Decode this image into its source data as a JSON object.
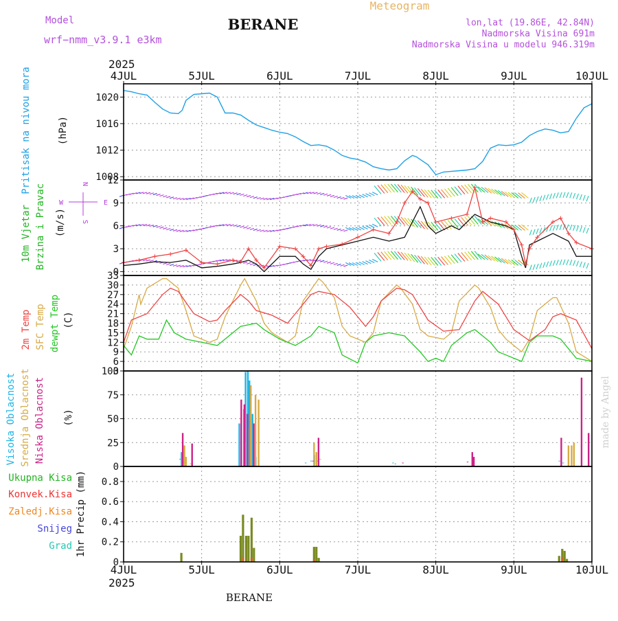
{
  "header": {
    "model_label": "Model",
    "model_name": "wrf−nmm_v3.9.1  e3km",
    "station": "BERANE",
    "meteogram": "Meteogram",
    "lonlat": "lon,lat (19.86E, 42.84N)",
    "elevation": "Nadmorska Visina 691m",
    "model_elevation": "Nadmorska Visina u modelu 946.319m",
    "year_top": "2025",
    "year_bottom": "2025",
    "footer_station": "BERANE",
    "credit": "made by Angel"
  },
  "colors": {
    "pressure": "#1ea0e6",
    "wind_label": "#22b422",
    "wind_dir": "#b43cdc",
    "temp2m": "#ee4444",
    "sfc": "#d8aa44",
    "dew": "#22c822",
    "cloud_high": "#1eb4e6",
    "cloud_mid": "#d8aa44",
    "cloud_low": "#cc2288",
    "precip_total": "#22b422",
    "precip_conv": "#ee3333",
    "precip_frz": "#ee8822",
    "precip_snow": "#4444dd",
    "precip_hail": "#22c8b4",
    "header_purple": "#b450dc",
    "header_orange": "#e6b464"
  },
  "chart_data": [
    {
      "type": "line",
      "id": "pressure",
      "title": "Pritisak na nivou mora",
      "ylabel": "(hPa)",
      "x_ticks": [
        "4JUL",
        "5JUL",
        "6JUL",
        "7JUL",
        "8JUL",
        "9JUL",
        "10JUL"
      ],
      "yticks": [
        "1008",
        "1012",
        "1016",
        "1020"
      ],
      "ylim": [
        1007.5,
        1022
      ],
      "x_days": [
        0,
        0.1,
        0.2,
        0.3,
        0.4,
        0.5,
        0.6,
        0.7,
        0.75,
        0.8,
        0.9,
        1.0,
        1.1,
        1.2,
        1.3,
        1.4,
        1.5,
        1.6,
        1.7,
        1.8,
        1.9,
        2.0,
        2.1,
        2.2,
        2.3,
        2.4,
        2.5,
        2.6,
        2.7,
        2.8,
        2.9,
        3.0,
        3.1,
        3.2,
        3.3,
        3.4,
        3.5,
        3.6,
        3.7,
        3.75,
        3.8,
        3.9,
        4.0,
        4.1,
        4.2,
        4.3,
        4.4,
        4.5,
        4.6,
        4.7,
        4.8,
        4.9,
        5.0,
        5.1,
        5.2,
        5.3,
        5.4,
        5.5,
        5.6,
        5.7,
        5.8,
        5.9,
        6.0
      ],
      "values": [
        1021,
        1020.8,
        1020.5,
        1020.3,
        1019.2,
        1018.2,
        1017.6,
        1017.5,
        1018.0,
        1019.5,
        1020.4,
        1020.5,
        1020.6,
        1020.0,
        1017.6,
        1017.6,
        1017.3,
        1016.5,
        1015.8,
        1015.4,
        1015.0,
        1014.7,
        1014.5,
        1014.0,
        1013.3,
        1012.7,
        1012.8,
        1012.6,
        1012.0,
        1011.2,
        1010.8,
        1010.6,
        1010.2,
        1009.5,
        1009.2,
        1009.0,
        1009.2,
        1010.4,
        1011.2,
        1011.0,
        1010.6,
        1009.8,
        1008.3,
        1008.7,
        1008.8,
        1008.9,
        1009.0,
        1009.2,
        1010.3,
        1012.3,
        1012.8,
        1012.7,
        1012.8,
        1013.2,
        1014.2,
        1014.8,
        1015.2,
        1015.0,
        1014.6,
        1014.8,
        1016.8,
        1018.4,
        1019.0
      ]
    },
    {
      "type": "line",
      "id": "wind",
      "title": "10m Vjetar",
      "title2": "Brzina i Pravac",
      "ylabel": "(m/s)",
      "dir_label": "N",
      "dir_e": "E",
      "dir_w": "W",
      "dir_s": "S",
      "yticks": [
        "0",
        "3",
        "6",
        "9",
        "12"
      ],
      "ylim": [
        -0.5,
        12
      ],
      "series": [
        {
          "name": "wind speed",
          "x_days": [
            0,
            0.2,
            0.4,
            0.6,
            0.8,
            1.0,
            1.2,
            1.4,
            1.5,
            1.6,
            1.7,
            1.8,
            2.0,
            2.2,
            2.3,
            2.4,
            2.5,
            2.6,
            2.8,
            3.0,
            3.2,
            3.4,
            3.6,
            3.8,
            3.9,
            4.0,
            4.1,
            4.2,
            4.3,
            4.5,
            4.7,
            4.9,
            5.0,
            5.1,
            5.15,
            5.2,
            5.3,
            5.5,
            5.7,
            5.8,
            6.0
          ],
          "values": [
            0.8,
            1.0,
            1.3,
            1.2,
            1.5,
            0.5,
            0.7,
            1.0,
            1.2,
            1.5,
            1.0,
            0.0,
            2.0,
            2.0,
            1.0,
            0.3,
            2.0,
            3.0,
            3.5,
            4.0,
            4.5,
            4.0,
            4.5,
            8.5,
            6.0,
            5.0,
            5.5,
            6.0,
            5.5,
            7.5,
            6.5,
            6.0,
            5.5,
            2.0,
            0.5,
            3.5,
            4.0,
            5.0,
            4.0,
            2.0,
            2.0
          ]
        },
        {
          "name": "wind gust",
          "x_days": [
            0,
            0.2,
            0.4,
            0.6,
            0.8,
            1.0,
            1.2,
            1.4,
            1.5,
            1.6,
            1.7,
            1.8,
            2.0,
            2.2,
            2.3,
            2.4,
            2.5,
            2.6,
            2.8,
            3.0,
            3.2,
            3.4,
            3.5,
            3.6,
            3.7,
            3.8,
            3.9,
            4.0,
            4.2,
            4.4,
            4.5,
            4.6,
            4.7,
            4.9,
            5.0,
            5.1,
            5.15,
            5.2,
            5.3,
            5.5,
            5.6,
            5.7,
            5.8,
            6.0
          ],
          "values": [
            1.2,
            1.5,
            2.0,
            2.3,
            2.8,
            1.2,
            1.0,
            1.5,
            1.3,
            3.0,
            1.5,
            0.5,
            3.3,
            3.0,
            2.0,
            0.8,
            3.0,
            3.3,
            3.6,
            4.5,
            5.5,
            5.0,
            6.5,
            9.0,
            10.5,
            9.5,
            9.0,
            6.5,
            7.0,
            7.5,
            11.0,
            6.5,
            7.0,
            6.5,
            5.5,
            3.5,
            1.0,
            3.0,
            4.5,
            6.5,
            7.0,
            5.0,
            3.8,
            3.0
          ]
        }
      ]
    },
    {
      "type": "line",
      "id": "temperature",
      "title": "2m Temp",
      "title2": "SFC Temp",
      "title3": "dewpt Temp",
      "ylabel": "(C)",
      "yticks": [
        "3",
        "6",
        "9",
        "12",
        "15",
        "18",
        "21",
        "24",
        "27",
        "30",
        "33"
      ],
      "ylim": [
        3,
        33
      ],
      "series": [
        {
          "name": "2m Temp",
          "x_days": [
            0,
            0.1,
            0.3,
            0.5,
            0.6,
            0.7,
            0.9,
            1.1,
            1.2,
            1.3,
            1.5,
            1.6,
            1.7,
            1.9,
            2.1,
            2.2,
            2.4,
            2.5,
            2.7,
            2.9,
            3.1,
            3.2,
            3.3,
            3.5,
            3.6,
            3.7,
            3.9,
            4.1,
            4.3,
            4.5,
            4.6,
            4.8,
            5.0,
            5.2,
            5.4,
            5.5,
            5.6,
            5.8,
            6.0
          ],
          "values": [
            12,
            19,
            21,
            27,
            29,
            28,
            21,
            18.5,
            19,
            22,
            27,
            25,
            22,
            20.5,
            18,
            21,
            27,
            28,
            27,
            23,
            17,
            20,
            25,
            29,
            28.5,
            27,
            19,
            15.5,
            16,
            25,
            28,
            24,
            16,
            12.5,
            16,
            20,
            21,
            19,
            10
          ]
        },
        {
          "name": "SFC Temp",
          "x_days": [
            0,
            0.1,
            0.2,
            0.22,
            0.3,
            0.5,
            0.55,
            0.7,
            0.8,
            0.9,
            1.1,
            1.2,
            1.3,
            1.5,
            1.55,
            1.7,
            1.8,
            1.9,
            2.1,
            2.2,
            2.3,
            2.5,
            2.55,
            2.7,
            2.8,
            2.9,
            3.1,
            3.2,
            3.3,
            3.5,
            3.55,
            3.7,
            3.8,
            3.9,
            4.1,
            4.2,
            4.3,
            4.5,
            4.55,
            4.7,
            4.8,
            4.9,
            5.1,
            5.2,
            5.3,
            5.5,
            5.55,
            5.7,
            5.8,
            6.0
          ],
          "values": [
            10,
            17,
            27,
            24,
            29,
            32,
            32,
            29,
            22,
            14,
            12,
            13,
            20,
            30,
            32,
            25,
            18,
            15,
            12,
            14,
            25,
            32,
            31,
            26,
            17,
            14,
            12,
            15,
            25,
            30,
            29,
            24,
            16,
            14,
            13,
            15,
            25,
            30,
            29,
            23,
            16,
            13,
            9,
            13,
            22,
            26,
            26,
            18,
            9,
            6
          ]
        },
        {
          "name": "dewpt Temp",
          "x_days": [
            0,
            0.1,
            0.2,
            0.3,
            0.45,
            0.55,
            0.65,
            0.8,
            1.0,
            1.2,
            1.4,
            1.5,
            1.7,
            1.8,
            2.0,
            2.2,
            2.4,
            2.5,
            2.7,
            2.8,
            3.0,
            3.1,
            3.2,
            3.4,
            3.6,
            3.8,
            3.9,
            4.0,
            4.1,
            4.2,
            4.4,
            4.5,
            4.6,
            4.7,
            4.8,
            4.9,
            5.0,
            5.1,
            5.2,
            5.3,
            5.5,
            5.6,
            5.8,
            6.0
          ],
          "values": [
            11,
            8,
            14,
            13,
            13,
            19,
            15,
            13,
            12,
            11,
            15,
            17,
            18,
            16,
            13,
            11,
            14,
            17,
            15,
            8,
            5.5,
            12,
            14,
            15,
            14,
            9,
            6,
            7,
            6,
            11,
            15,
            16,
            14,
            12,
            9,
            8,
            7,
            6,
            12,
            14,
            14,
            13,
            7,
            6
          ]
        }
      ]
    },
    {
      "type": "bar",
      "id": "clouds",
      "title": "Visoka Oblacnost",
      "title2": "Srednja Oblacnost",
      "title3": "Niska Oblacnost",
      "ylabel": "(%)",
      "yticks": [
        "0",
        "25",
        "50",
        "75",
        "100"
      ],
      "ylim": [
        0,
        100
      ],
      "series": [
        {
          "name": "Visoka Oblacnost",
          "x_days": [
            0.74,
            0.76,
            0.78,
            1.5,
            1.56,
            1.58,
            1.61,
            1.63,
            1.67,
            1.71,
            2.35,
            2.42,
            2.46,
            2.5,
            3.47,
            3.5,
            5.6,
            5.65
          ],
          "values": [
            8,
            15,
            5,
            45,
            60,
            99,
            100,
            90,
            55,
            10,
            4,
            6,
            12,
            6,
            4,
            3,
            6,
            4
          ]
        },
        {
          "name": "Srednja Oblacnost",
          "x_days": [
            0.78,
            0.8,
            0.86,
            1.55,
            1.59,
            1.63,
            1.69,
            1.73,
            2.44,
            2.47,
            2.52,
            5.7,
            5.74,
            5.77
          ],
          "values": [
            22,
            10,
            3,
            25,
            40,
            85,
            75,
            70,
            25,
            15,
            8,
            22,
            22,
            25
          ]
        },
        {
          "name": "Niska Oblacnost",
          "x_days": [
            0.74,
            0.86,
            1.49,
            1.53,
            1.57,
            1.65,
            2.41,
            2.48,
            3.56,
            4.39,
            4.45,
            4.47,
            5.59,
            5.85,
            5.94
          ],
          "values": [
            35,
            24,
            70,
            65,
            55,
            45,
            6,
            30,
            4,
            5,
            15,
            10,
            30,
            93,
            35
          ]
        }
      ]
    },
    {
      "type": "bar",
      "id": "precip",
      "title": "Ukupna Kisa",
      "title2": "Konvek.Kisa",
      "title3": "Zaledj.Kisa",
      "title4": "Snijeg",
      "title5": "Grad",
      "ylabel": "1hr Precip (mm)",
      "yticks": [
        "0",
        "0.2",
        "0.4",
        "0.6",
        "0.8"
      ],
      "ylim": [
        0,
        0.95
      ],
      "series": [
        {
          "name": "Ukupna Kisa",
          "x_days": [
            0.74,
            1.5,
            1.53,
            1.57,
            1.6,
            1.64,
            1.67,
            2.44,
            2.47,
            2.5,
            5.58,
            5.62,
            5.65,
            5.68
          ],
          "values": [
            0.09,
            0.26,
            0.47,
            0.26,
            0.26,
            0.44,
            0.14,
            0.15,
            0.15,
            0.04,
            0.06,
            0.13,
            0.11,
            0.03
          ]
        },
        {
          "name": "Konvek.Kisa",
          "x_days": [
            1.53,
            1.64,
            2.44,
            5.62
          ],
          "values": [
            0.05,
            0.04,
            0.02,
            0.05
          ]
        }
      ]
    }
  ]
}
